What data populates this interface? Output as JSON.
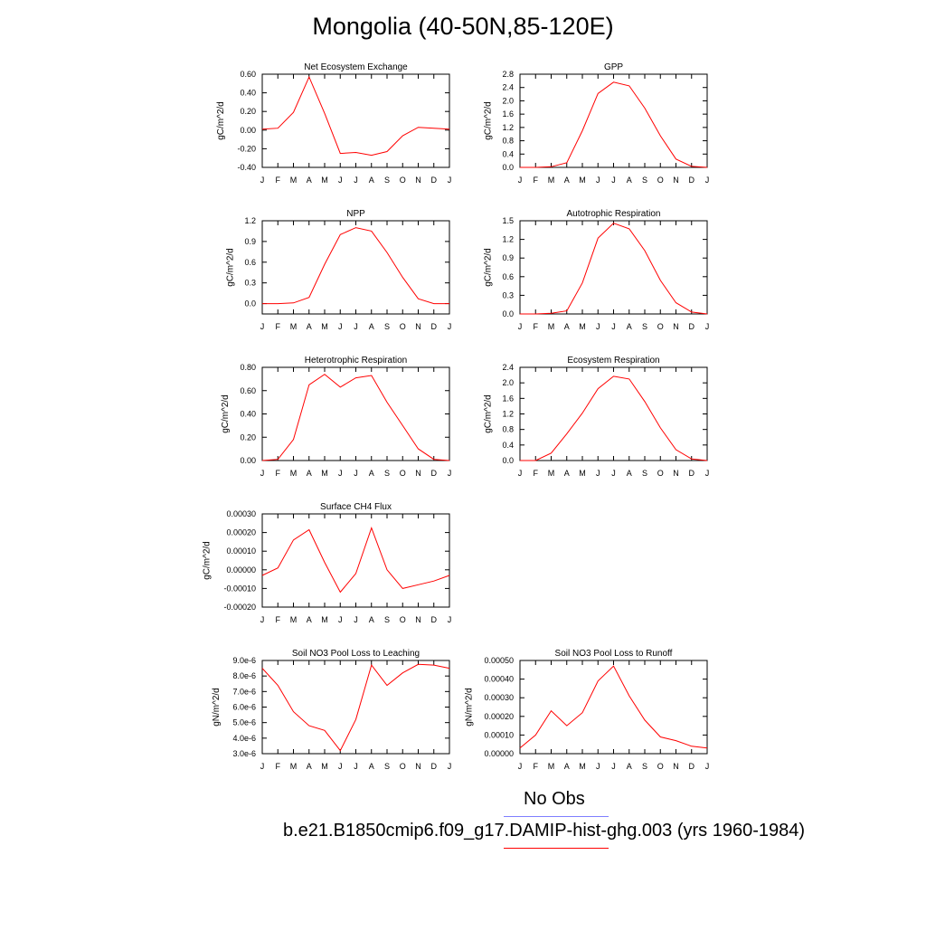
{
  "title": "Mongolia (40-50N,85-120E)",
  "legend": {
    "obs_label": "No Obs",
    "obs_color": "#7f7fff",
    "model_label": "b.e21.B1850cmip6.f09_g17.DAMIP-hist-ghg.003 (yrs 1960-1984)",
    "model_color": "#ff0000"
  },
  "chart_data": [
    {
      "type": "line",
      "title": "Net Ecosystem Exchange",
      "ylabel": "gC/m^2/d",
      "categories": [
        "J",
        "F",
        "M",
        "A",
        "M",
        "J",
        "J",
        "A",
        "S",
        "O",
        "N",
        "D",
        "J"
      ],
      "yticks": [
        "0.60",
        "0.40",
        "0.20",
        "0.00",
        "-0.20",
        "-0.40"
      ],
      "ylim": [
        -0.4,
        0.6
      ],
      "series": [
        {
          "values": [
            0.01,
            0.02,
            0.19,
            0.57,
            0.18,
            -0.25,
            -0.24,
            -0.27,
            -0.23,
            -0.06,
            0.03,
            0.02,
            0.01
          ]
        }
      ]
    },
    {
      "type": "line",
      "title": "GPP",
      "ylabel": "gC/m^2/d",
      "categories": [
        "J",
        "F",
        "M",
        "A",
        "M",
        "J",
        "J",
        "A",
        "S",
        "O",
        "N",
        "D",
        "J"
      ],
      "yticks": [
        "2.8",
        "2.4",
        "2.0",
        "1.6",
        "1.2",
        "0.8",
        "0.4",
        "0.0"
      ],
      "ylim": [
        0,
        2.8
      ],
      "series": [
        {
          "values": [
            0.0,
            0.0,
            0.02,
            0.14,
            1.1,
            2.22,
            2.56,
            2.45,
            1.78,
            0.95,
            0.25,
            0.03,
            0.0
          ]
        }
      ]
    },
    {
      "type": "line",
      "title": "NPP",
      "ylabel": "gC/m^2/d",
      "categories": [
        "J",
        "F",
        "M",
        "A",
        "M",
        "J",
        "J",
        "A",
        "S",
        "O",
        "N",
        "D",
        "J"
      ],
      "yticks": [
        "1.2",
        "0.9",
        "0.6",
        "0.3",
        "0.0"
      ],
      "ylim": [
        -0.15,
        1.2
      ],
      "series": [
        {
          "values": [
            0.0,
            0.0,
            0.01,
            0.09,
            0.57,
            1.0,
            1.1,
            1.05,
            0.74,
            0.38,
            0.07,
            0.0,
            0.0
          ]
        }
      ]
    },
    {
      "type": "line",
      "title": "Autotrophic Respiration",
      "ylabel": "gC/m^2/d",
      "categories": [
        "J",
        "F",
        "M",
        "A",
        "M",
        "J",
        "J",
        "A",
        "S",
        "O",
        "N",
        "D",
        "J"
      ],
      "yticks": [
        "1.5",
        "1.2",
        "0.9",
        "0.6",
        "0.3",
        "0.0"
      ],
      "ylim": [
        0,
        1.5
      ],
      "series": [
        {
          "values": [
            0.0,
            0.0,
            0.01,
            0.05,
            0.5,
            1.22,
            1.46,
            1.37,
            1.02,
            0.54,
            0.18,
            0.03,
            0.0
          ]
        }
      ]
    },
    {
      "type": "line",
      "title": "Heterotrophic Respiration",
      "ylabel": "gC/m^2/d",
      "categories": [
        "J",
        "F",
        "M",
        "A",
        "M",
        "J",
        "J",
        "A",
        "S",
        "O",
        "N",
        "D",
        "J"
      ],
      "yticks": [
        "0.80",
        "0.60",
        "0.40",
        "0.20",
        "0.00"
      ],
      "ylim": [
        0,
        0.8
      ],
      "series": [
        {
          "values": [
            0.0,
            0.01,
            0.18,
            0.65,
            0.74,
            0.63,
            0.71,
            0.73,
            0.5,
            0.3,
            0.1,
            0.01,
            0.0
          ]
        }
      ]
    },
    {
      "type": "line",
      "title": "Ecosystem Respiration",
      "ylabel": "gC/m^2/d",
      "categories": [
        "J",
        "F",
        "M",
        "A",
        "M",
        "J",
        "J",
        "A",
        "S",
        "O",
        "N",
        "D",
        "J"
      ],
      "yticks": [
        "2.4",
        "2.0",
        "1.6",
        "1.2",
        "0.8",
        "0.4",
        "0.0"
      ],
      "ylim": [
        0,
        2.4
      ],
      "series": [
        {
          "values": [
            0.0,
            0.0,
            0.19,
            0.69,
            1.22,
            1.85,
            2.17,
            2.1,
            1.52,
            0.84,
            0.28,
            0.04,
            0.0
          ]
        }
      ]
    },
    {
      "type": "line",
      "title": "Surface CH4 Flux",
      "ylabel": "gC/m^2/d",
      "categories": [
        "J",
        "F",
        "M",
        "A",
        "M",
        "J",
        "J",
        "A",
        "S",
        "O",
        "N",
        "D",
        "J"
      ],
      "yticks": [
        "0.00030",
        "0.00020",
        "0.00010",
        "0.00000",
        "-0.00010",
        "-0.00020"
      ],
      "ylim": [
        -0.0002,
        0.0003
      ],
      "series": [
        {
          "values": [
            -3e-05,
            1e-05,
            0.00016,
            0.000215,
            4e-05,
            -0.00012,
            -2e-05,
            0.000225,
            0.0,
            -0.0001,
            -8e-05,
            -6e-05,
            -3e-05
          ]
        }
      ]
    },
    {
      "type": "line",
      "title": "Soil NO3 Pool Loss to Leaching",
      "ylabel": "gN/m^2/d",
      "categories": [
        "J",
        "F",
        "M",
        "A",
        "M",
        "J",
        "J",
        "A",
        "S",
        "O",
        "N",
        "D",
        "J"
      ],
      "yticks": [
        "9.0e-6",
        "8.0e-6",
        "7.0e-6",
        "6.0e-6",
        "5.0e-6",
        "4.0e-6",
        "3.0e-6"
      ],
      "ylim": [
        3e-06,
        9e-06
      ],
      "series": [
        {
          "values": [
            8.5e-06,
            7.4e-06,
            5.7e-06,
            4.8e-06,
            4.5e-06,
            3.2e-06,
            5.2e-06,
            8.7e-06,
            7.4e-06,
            8.2e-06,
            8.75e-06,
            8.7e-06,
            8.5e-06
          ]
        }
      ]
    },
    {
      "type": "line",
      "title": "Soil NO3 Pool Loss to Runoff",
      "ylabel": "gN/m^2/d",
      "categories": [
        "J",
        "F",
        "M",
        "A",
        "M",
        "J",
        "J",
        "A",
        "S",
        "O",
        "N",
        "D",
        "J"
      ],
      "yticks": [
        "0.00050",
        "0.00040",
        "0.00030",
        "0.00020",
        "0.00010",
        "0.00000"
      ],
      "ylim": [
        0,
        0.0005
      ],
      "series": [
        {
          "values": [
            3e-05,
            0.0001,
            0.00023,
            0.00015,
            0.00022,
            0.00039,
            0.00047,
            0.00031,
            0.00018,
            9e-05,
            7e-05,
            4e-05,
            3e-05
          ]
        }
      ]
    }
  ]
}
